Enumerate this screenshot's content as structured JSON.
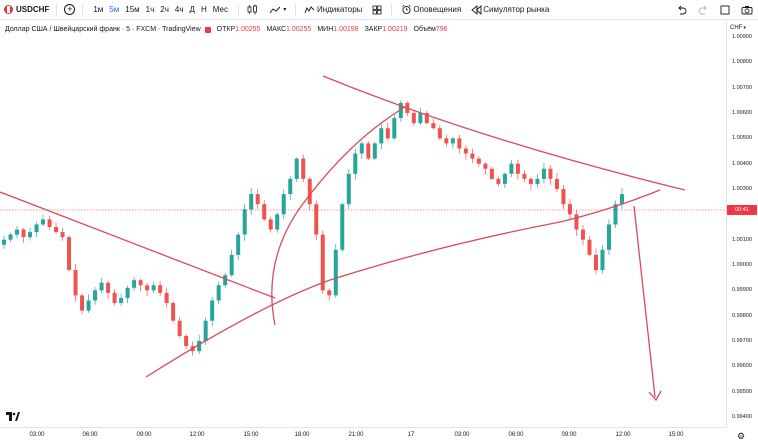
{
  "toolbar": {
    "symbol": "USDCHF",
    "add_symbol_icon": "plus-circle-icon",
    "intervals": [
      "1м",
      "5м",
      "15м",
      "1ч",
      "2ч",
      "4ч",
      "Д",
      "Н",
      "Мес"
    ],
    "active_interval": "5м",
    "indicators_label": "Индикаторы",
    "alerts_label": "Оповещения",
    "replay_label": "Симулятор рынка"
  },
  "legend": {
    "description": "Доллар США / Швейцарский франк · 5 · FXCM · TradingView",
    "open_label": "ОТКР",
    "open_value": "1.00255",
    "high_label": "МАКС",
    "high_value": "1.00255",
    "low_label": "МИН",
    "low_value": "1.00198",
    "close_label": "ЗАКР",
    "close_value": "1.00219",
    "volume_label": "Объём",
    "volume_value": "796"
  },
  "price_axis": {
    "currency": "CHF",
    "labels": [
      "1.00900",
      "1.00800",
      "1.00700",
      "1.00600",
      "1.00500",
      "1.00400",
      "1.00300",
      "1.00100",
      "1.00000",
      "0.99900",
      "0.99800",
      "0.99700",
      "0.99600",
      "0.99500",
      "0.99400"
    ],
    "current_tag": "00:41"
  },
  "time_axis": {
    "labels": [
      "03:00",
      "06:00",
      "09:00",
      "12:00",
      "15:00",
      "18:00",
      "21:00",
      "17",
      "03:00",
      "06:00",
      "09:00",
      "12:00",
      "15:00"
    ]
  },
  "colors": {
    "up": "#26a69a",
    "down": "#ef5350",
    "drawing": "#d84c5c",
    "accent": "#2962ff"
  },
  "chart_data": {
    "type": "candlestick",
    "symbol": "USDCHF",
    "timeframe": "5",
    "ylim": [
      0.9939,
      1.0094
    ],
    "close_series": [
      1.001,
      1.0012,
      1.0014,
      1.0011,
      1.0013,
      1.0016,
      1.0018,
      1.0015,
      1.0013,
      1.0011,
      0.9998,
      0.9988,
      0.9982,
      0.9986,
      0.999,
      0.9993,
      0.9989,
      0.9985,
      0.9987,
      0.9991,
      0.9994,
      0.9992,
      0.999,
      0.9992,
      0.9989,
      0.9985,
      0.9978,
      0.9972,
      0.9968,
      0.9966,
      0.997,
      0.9978,
      0.9986,
      0.9992,
      0.9996,
      1.0004,
      1.0012,
      1.0022,
      1.0028,
      1.0024,
      1.0018,
      1.0014,
      1.002,
      1.0028,
      1.0034,
      1.0042,
      1.0034,
      1.0024,
      1.0012,
      0.999,
      0.9988,
      1.0006,
      1.0024,
      1.0036,
      1.0044,
      1.0048,
      1.0042,
      1.0048,
      1.0054,
      1.005,
      1.0058,
      1.0064,
      1.006,
      1.0056,
      1.006,
      1.0056,
      1.0054,
      1.005,
      1.0048,
      1.005,
      1.0046,
      1.0044,
      1.0042,
      1.004,
      1.0038,
      1.0034,
      1.0032,
      1.0036,
      1.004,
      1.0036,
      1.0034,
      1.0032,
      1.0034,
      1.0038,
      1.0034,
      1.003,
      1.0024,
      1.002,
      1.0014,
      1.001,
      1.0004,
      0.9998,
      1.0006,
      1.0016,
      1.0024,
      1.0028
    ]
  }
}
